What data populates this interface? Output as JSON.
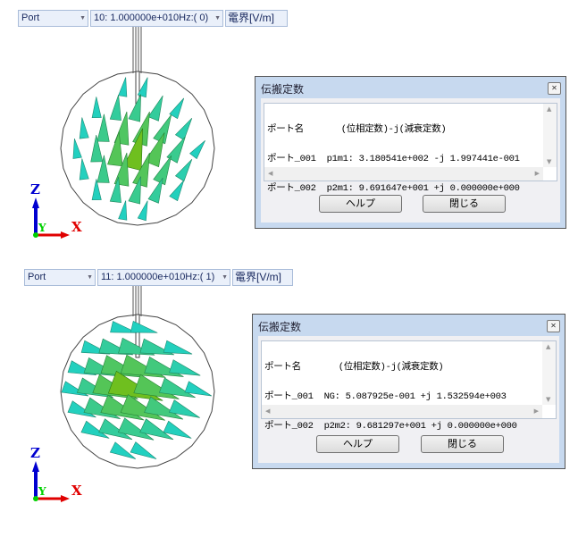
{
  "panels": [
    {
      "toolbar": {
        "port": "Port",
        "frequency": "10: 1.000000e+010Hz:( 0)",
        "field": "電界[V/m]"
      },
      "axes": {
        "z": "Z",
        "y": "Y",
        "x": "X"
      },
      "dialog": {
        "title": "伝搬定数",
        "close_icon": "close-icon",
        "lines": [
          "ポート名       (位相定数)-j(減衰定数)",
          "ポート_001  p1m1: 3.180541e+002 -j 1.997441e-001",
          "ポート_002  p2m1: 9.691647e+001 +j 0.000000e+000"
        ],
        "help_label": "ヘルプ",
        "close_label": "閉じる"
      }
    },
    {
      "toolbar": {
        "port": "Port",
        "frequency": "11: 1.000000e+010Hz:( 1)",
        "field": "電界[V/m]"
      },
      "axes": {
        "z": "Z",
        "y": "Y",
        "x": "X"
      },
      "dialog": {
        "title": "伝搬定数",
        "close_icon": "close-icon",
        "lines": [
          "ポート名       (位相定数)-j(減衰定数)",
          "ポート_001  NG: 5.087925e-001 +j 1.532594e+003",
          "ポート_002  p2m2: 9.681297e+001 +j 0.000000e+000"
        ],
        "help_label": "ヘルプ",
        "close_label": "閉じる"
      }
    }
  ],
  "colors": {
    "axis_x": "#e00000",
    "axis_y": "#00d000",
    "axis_z": "#0000d0",
    "cone_center": "#6fbf1f",
    "cone_edge": "#22d0c0"
  }
}
